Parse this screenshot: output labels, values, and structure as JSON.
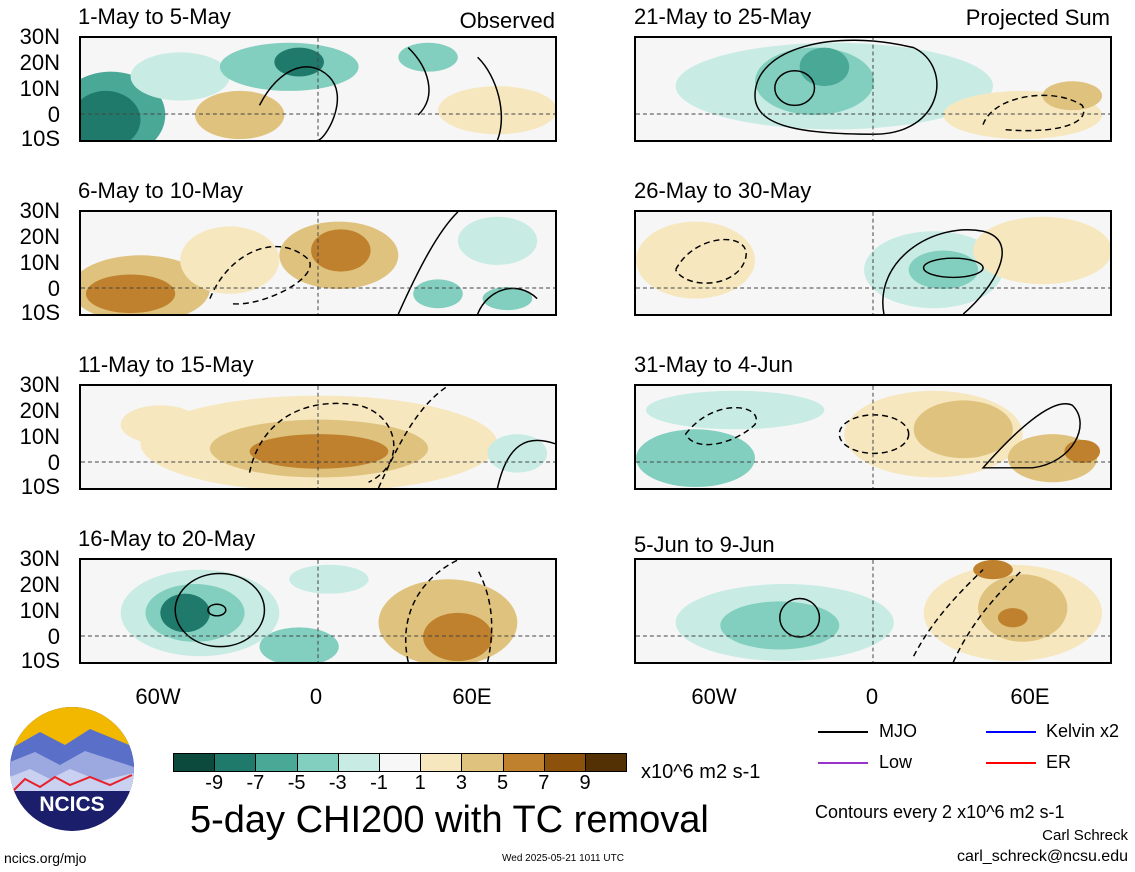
{
  "panels_left": [
    {
      "title": "1-May to 5-May",
      "note": "Observed"
    },
    {
      "title": "6-May to 10-May",
      "note": ""
    },
    {
      "title": "11-May to 15-May",
      "note": ""
    },
    {
      "title": "16-May to 20-May",
      "note": ""
    }
  ],
  "panels_right": [
    {
      "title": "21-May to 25-May",
      "note": "Projected Sum"
    },
    {
      "title": "26-May to 30-May",
      "note": ""
    },
    {
      "title": "31-May to 4-Jun",
      "note": ""
    },
    {
      "title": "5-Jun to 9-Jun",
      "note": ""
    }
  ],
  "lat_labels": [
    "30N",
    "20N",
    "10N",
    "0",
    "10S"
  ],
  "lon_labels": [
    "60W",
    "0",
    "60E"
  ],
  "colorbar": {
    "colors": [
      "#0c4a3e",
      "#1f7a6c",
      "#4aa897",
      "#83cfbf",
      "#c8ece4",
      "#f7f7f7",
      "#f6e7bf",
      "#dfc27d",
      "#bf812d",
      "#8c510a",
      "#543005"
    ],
    "labels": [
      "-9",
      "-7",
      "-5",
      "-3",
      "-1",
      "1",
      "3",
      "5",
      "7",
      "9"
    ],
    "units": "x10^6 m2 s-1"
  },
  "main_title": "5-day CHI200 with TC removal",
  "legend": {
    "items": [
      {
        "label": "MJO",
        "color": "#000000"
      },
      {
        "label": "Kelvin x2",
        "color": "#0000ff"
      },
      {
        "label": "Low",
        "color": "#9933cc"
      },
      {
        "label": "ER",
        "color": "#ff0000"
      }
    ]
  },
  "contour_note": "Contours every 2 x10^6 m2 s-1",
  "author": "Carl Schreck",
  "email": "carl_schreck@ncsu.edu",
  "site": "ncics.org/mjo",
  "timestamp": "Wed 2025-05-21 1011 UTC",
  "logo_text": "NCICS"
}
